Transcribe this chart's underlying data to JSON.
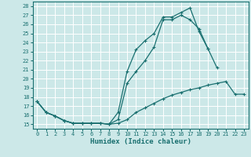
{
  "xlabel": "Humidex (Indice chaleur)",
  "bg_color": "#cce8e8",
  "grid_color": "#ffffff",
  "line_color": "#1a7070",
  "xlim": [
    -0.5,
    23.5
  ],
  "ylim": [
    14.5,
    28.5
  ],
  "xticks": [
    0,
    1,
    2,
    3,
    4,
    5,
    6,
    7,
    8,
    9,
    10,
    11,
    12,
    13,
    14,
    15,
    16,
    17,
    18,
    19,
    20,
    21,
    22,
    23
  ],
  "yticks": [
    15,
    16,
    17,
    18,
    19,
    20,
    21,
    22,
    23,
    24,
    25,
    26,
    27,
    28
  ],
  "curve1_x": [
    0,
    1,
    2,
    3,
    4,
    5,
    6,
    7,
    8,
    9,
    10,
    11,
    12,
    13,
    14,
    15,
    16,
    17,
    18,
    19,
    20,
    21,
    22,
    23
  ],
  "curve1_y": [
    17.5,
    16.3,
    15.9,
    15.4,
    15.1,
    15.1,
    15.1,
    15.1,
    15.0,
    15.1,
    15.5,
    16.3,
    16.8,
    17.3,
    17.8,
    18.2,
    18.5,
    18.8,
    19.0,
    19.3,
    19.5,
    19.7,
    18.3,
    18.3
  ],
  "curve2_x": [
    0,
    1,
    2,
    3,
    4,
    5,
    6,
    7,
    8,
    9,
    10,
    11,
    12,
    13,
    14,
    15,
    16,
    17,
    18,
    19,
    20,
    21,
    22,
    23
  ],
  "curve2_y": [
    17.5,
    16.3,
    15.9,
    15.4,
    15.1,
    15.1,
    15.1,
    15.1,
    15.0,
    15.5,
    19.5,
    20.8,
    22.0,
    23.5,
    26.5,
    26.5,
    27.0,
    26.5,
    25.5,
    23.3,
    21.2,
    null,
    null,
    null
  ],
  "curve3_x": [
    0,
    1,
    2,
    3,
    4,
    5,
    6,
    7,
    8,
    9,
    10,
    11,
    12,
    13,
    14,
    15,
    16,
    17,
    18,
    19,
    20,
    21,
    22,
    23
  ],
  "curve3_y": [
    17.5,
    16.3,
    15.9,
    15.4,
    15.1,
    15.1,
    15.1,
    15.1,
    15.0,
    16.3,
    20.8,
    23.2,
    24.2,
    25.0,
    26.8,
    26.8,
    27.3,
    27.8,
    25.2,
    23.3,
    null,
    null,
    null,
    null
  ]
}
